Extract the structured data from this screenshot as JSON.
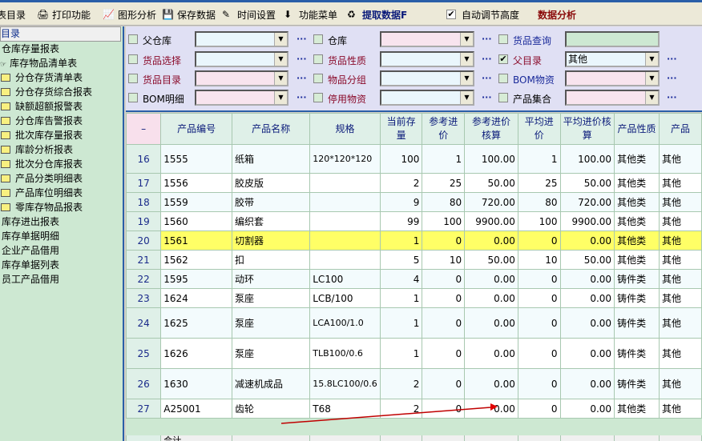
{
  "toolbar": {
    "items": [
      {
        "label": "表目录",
        "icon": "report-list-icon"
      },
      {
        "label": "打印功能",
        "icon": "printer-icon"
      },
      {
        "label": "图形分析",
        "icon": "chart-icon"
      },
      {
        "label": "保存数据",
        "icon": "save-disk-icon"
      },
      {
        "label": "时间设置",
        "icon": "wand-icon"
      },
      {
        "label": "功能菜单",
        "icon": "arrow-down-icon"
      },
      {
        "label": "提取数据F",
        "icon": "refresh-icon"
      }
    ],
    "auto_height_label": "自动调节高度",
    "auto_height_checked": true,
    "analysis_label": "数据分析"
  },
  "sidebar": {
    "header": "目录",
    "items": [
      {
        "label": "仓库存量报表",
        "type": "text"
      },
      {
        "label": "库存物品清单表",
        "type": "link"
      },
      {
        "label": "分仓存货清单表",
        "type": "folder"
      },
      {
        "label": "分仓存货综合报表",
        "type": "folder"
      },
      {
        "label": "缺额超额报警表",
        "type": "folder"
      },
      {
        "label": "分仓库告警报表",
        "type": "folder"
      },
      {
        "label": "批次库存量报表",
        "type": "folder"
      },
      {
        "label": "库龄分析报表",
        "type": "folder"
      },
      {
        "label": "批次分仓库报表",
        "type": "folder"
      },
      {
        "label": "产品分类明细表",
        "type": "folder"
      },
      {
        "label": "产品库位明细表",
        "type": "folder"
      },
      {
        "label": "零库存物品报表",
        "type": "folder"
      },
      {
        "label": "库存进出报表",
        "type": "text"
      },
      {
        "label": "库存单据明细",
        "type": "text"
      },
      {
        "label": "企业产品借用",
        "type": "text"
      },
      {
        "label": "库存单据列表",
        "type": "text"
      },
      {
        "label": "员工产品借用",
        "type": "text"
      }
    ]
  },
  "filters": [
    {
      "label": "父仓库",
      "color": "#000000",
      "checked": false,
      "value": "",
      "bg": "#eaf6fc"
    },
    {
      "label": "仓库",
      "color": "#000000",
      "checked": false,
      "value": "",
      "bg": "#f8e4ee"
    },
    {
      "label": "货品查询",
      "color": "#1a2a9a",
      "checked": false,
      "value": "",
      "bg": "#cde8d2",
      "text_input": true
    },
    {
      "label": "货品选择",
      "color": "#8a0a2a",
      "checked": false,
      "value": "",
      "bg": "#eaf6fc"
    },
    {
      "label": "货品性质",
      "color": "#8a0a2a",
      "checked": false,
      "value": "",
      "bg": "#eaf6fc"
    },
    {
      "label": "父目录",
      "color": "#8a0a2a",
      "checked": true,
      "value": "其他",
      "bg": "#eaf6fc"
    },
    {
      "label": "货品目录",
      "color": "#8a0a2a",
      "checked": false,
      "value": "",
      "bg": "#f8e4ee"
    },
    {
      "label": "物品分组",
      "color": "#8a0a2a",
      "checked": false,
      "value": "",
      "bg": "#eaf6fc"
    },
    {
      "label": "BOM物资",
      "color": "#1a2a9a",
      "checked": false,
      "value": "",
      "bg": "#f8e4ee"
    },
    {
      "label": "BOM明细",
      "color": "#000000",
      "checked": false,
      "value": "",
      "bg": "#f8e4ee"
    },
    {
      "label": "停用物资",
      "color": "#8a0a2a",
      "checked": false,
      "value": "",
      "bg": "#eaf6fc"
    },
    {
      "label": "产品集合",
      "color": "#000000",
      "checked": false,
      "value": "",
      "bg": "#f8e4ee"
    }
  ],
  "grid": {
    "corner": "–",
    "columns": [
      "产品编号",
      "产品名称",
      "规格",
      "当前存量",
      "参考进价",
      "参考进价核算",
      "平均进价",
      "平均进价核算",
      "产品性质",
      "产品"
    ],
    "rows": [
      {
        "n": "16",
        "cells": [
          "1555",
          "纸箱",
          "120*120*120",
          "100",
          "1",
          "100.00",
          "1",
          "100.00",
          "其他类",
          "其他"
        ],
        "tall": true
      },
      {
        "n": "17",
        "cells": [
          "1556",
          "胶皮版",
          "",
          "2",
          "25",
          "50.00",
          "25",
          "50.00",
          "其他类",
          "其他"
        ]
      },
      {
        "n": "18",
        "cells": [
          "1559",
          "胶带",
          "",
          "9",
          "80",
          "720.00",
          "80",
          "720.00",
          "其他类",
          "其他"
        ]
      },
      {
        "n": "19",
        "cells": [
          "1560",
          "编织套",
          "",
          "99",
          "100",
          "9900.00",
          "100",
          "9900.00",
          "其他类",
          "其他"
        ]
      },
      {
        "n": "20",
        "cells": [
          "1561",
          "切割器",
          "",
          "1",
          "0",
          "0.00",
          "0",
          "0.00",
          "其他类",
          "其他"
        ],
        "highlight": true
      },
      {
        "n": "21",
        "cells": [
          "1562",
          "扣",
          "",
          "5",
          "10",
          "50.00",
          "10",
          "50.00",
          "其他类",
          "其他"
        ]
      },
      {
        "n": "22",
        "cells": [
          "1595",
          "动环",
          "LC100",
          "4",
          "0",
          "0.00",
          "0",
          "0.00",
          "铸件类",
          "其他"
        ]
      },
      {
        "n": "23",
        "cells": [
          "1624",
          "泵座",
          "LCB/100",
          "1",
          "0",
          "0.00",
          "0",
          "0.00",
          "铸件类",
          "其他"
        ]
      },
      {
        "n": "24",
        "cells": [
          "1625",
          "泵座",
          "LCA100/1.0",
          "1",
          "0",
          "0.00",
          "0",
          "0.00",
          "铸件类",
          "其他"
        ],
        "tall": true
      },
      {
        "n": "25",
        "cells": [
          "1626",
          "泵座",
          "TLB100/0.6",
          "1",
          "0",
          "0.00",
          "0",
          "0.00",
          "铸件类",
          "其他"
        ],
        "tall": true
      },
      {
        "n": "26",
        "cells": [
          "1630",
          "减速机成品",
          "15.8LC100/0.6",
          "2",
          "0",
          "0.00",
          "0",
          "0.00",
          "铸件类",
          "其他"
        ],
        "tall": true
      },
      {
        "n": "27",
        "cells": [
          "A25001",
          "齿轮",
          "T68",
          "2",
          "0",
          "0.00",
          "0",
          "0.00",
          "其他类",
          "其他"
        ]
      }
    ],
    "total_label": "合计"
  }
}
